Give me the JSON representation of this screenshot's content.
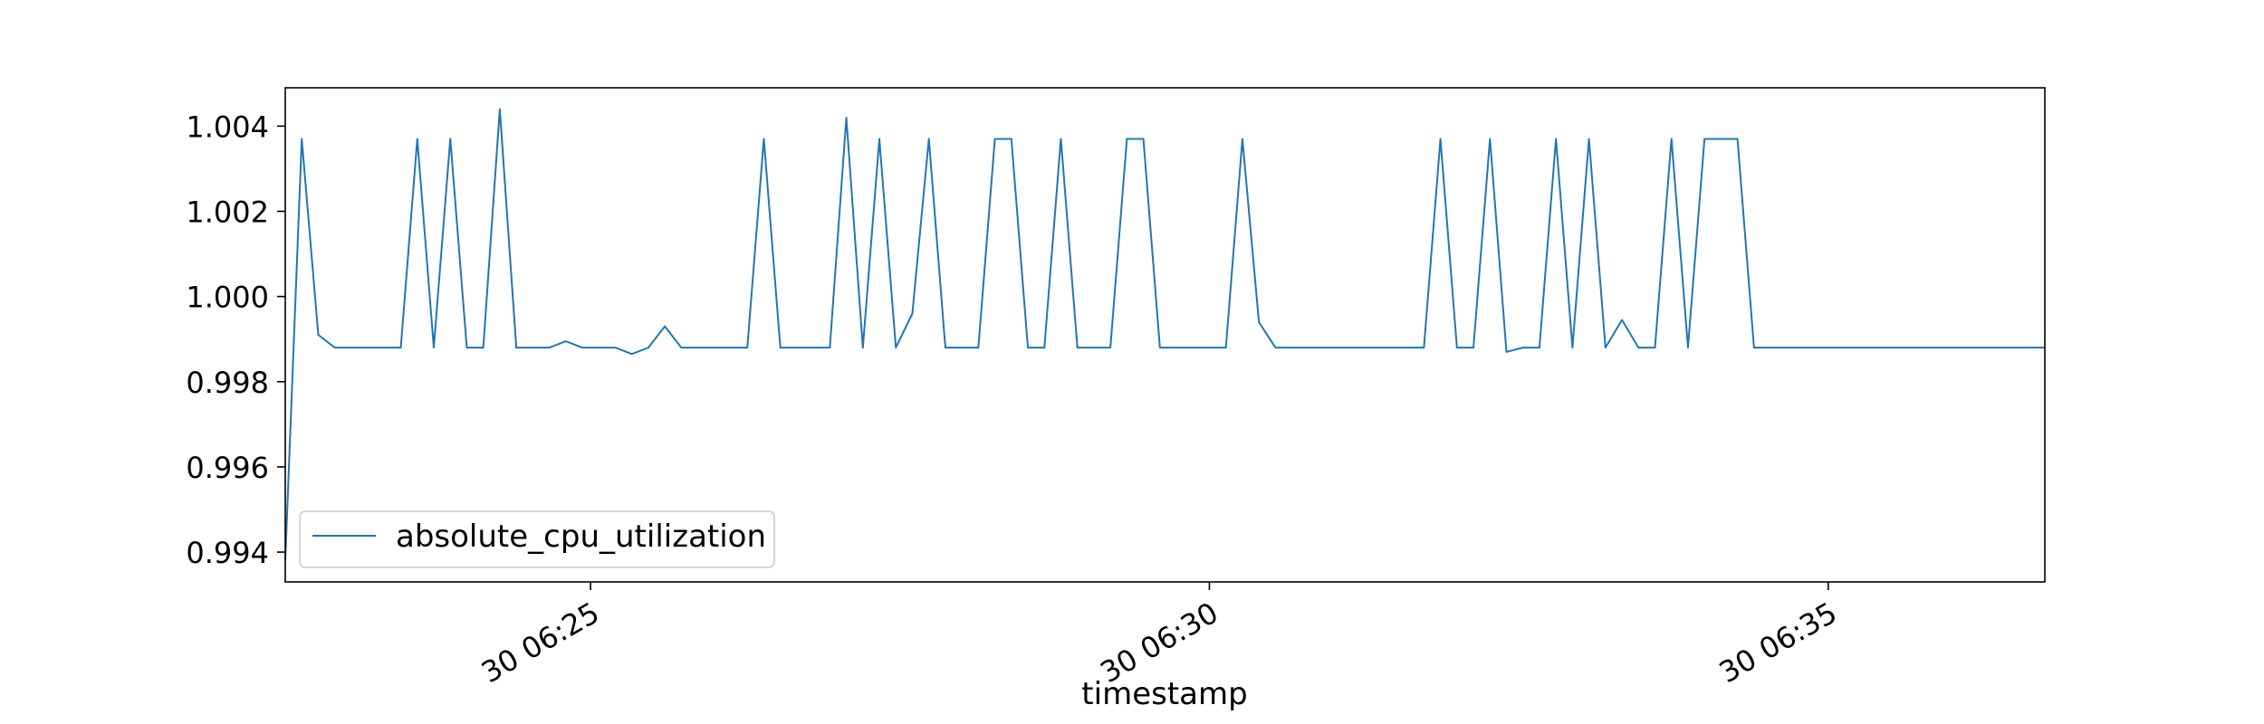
{
  "chart_data": {
    "type": "line",
    "title": "",
    "xlabel": "timestamp",
    "ylabel": "",
    "x_unit": "minutes",
    "xlim": [
      "30 06:22:32",
      "30 06:36:45"
    ],
    "ylim": [
      0.9933,
      1.0049
    ],
    "x_ticks": [
      {
        "label": "30 06:25",
        "value": "30 06:25:00"
      },
      {
        "label": "30 06:30",
        "value": "30 06:30:00"
      },
      {
        "label": "30 06:35",
        "value": "30 06:35:00"
      }
    ],
    "y_ticks": [
      "0.994",
      "0.996",
      "0.998",
      "1.000",
      "1.002",
      "1.004"
    ],
    "grid": false,
    "legend_position": "lower-left",
    "series_color": "#1f77b4",
    "series": [
      {
        "name": "absolute_cpu_utilization",
        "x": [
          "30 06:22:32",
          "30 06:22:40",
          "30 06:22:48",
          "30 06:22:56",
          "30 06:23:04",
          "30 06:23:12",
          "30 06:23:20",
          "30 06:23:28",
          "30 06:23:36",
          "30 06:23:44",
          "30 06:23:52",
          "30 06:24:00",
          "30 06:24:08",
          "30 06:24:16",
          "30 06:24:24",
          "30 06:24:32",
          "30 06:24:40",
          "30 06:24:48",
          "30 06:24:56",
          "30 06:25:04",
          "30 06:25:12",
          "30 06:25:20",
          "30 06:25:28",
          "30 06:25:36",
          "30 06:25:44",
          "30 06:25:52",
          "30 06:26:00",
          "30 06:26:08",
          "30 06:26:16",
          "30 06:26:24",
          "30 06:26:32",
          "30 06:26:40",
          "30 06:26:48",
          "30 06:26:56",
          "30 06:27:04",
          "30 06:27:12",
          "30 06:27:20",
          "30 06:27:28",
          "30 06:27:36",
          "30 06:27:44",
          "30 06:27:52",
          "30 06:28:00",
          "30 06:28:08",
          "30 06:28:16",
          "30 06:28:24",
          "30 06:28:32",
          "30 06:28:40",
          "30 06:28:48",
          "30 06:28:56",
          "30 06:29:04",
          "30 06:29:12",
          "30 06:29:20",
          "30 06:29:28",
          "30 06:29:36",
          "30 06:29:44",
          "30 06:29:52",
          "30 06:30:00",
          "30 06:30:08",
          "30 06:30:16",
          "30 06:30:24",
          "30 06:30:32",
          "30 06:30:40",
          "30 06:30:48",
          "30 06:30:56",
          "30 06:31:04",
          "30 06:31:12",
          "30 06:31:20",
          "30 06:31:28",
          "30 06:31:36",
          "30 06:31:44",
          "30 06:31:52",
          "30 06:32:00",
          "30 06:32:08",
          "30 06:32:16",
          "30 06:32:24",
          "30 06:32:32",
          "30 06:32:40",
          "30 06:32:48",
          "30 06:32:56",
          "30 06:33:04",
          "30 06:33:12",
          "30 06:33:20",
          "30 06:33:28",
          "30 06:33:36",
          "30 06:33:44",
          "30 06:33:52",
          "30 06:34:00",
          "30 06:34:08",
          "30 06:34:16",
          "30 06:34:24",
          "30 06:34:32",
          "30 06:34:40",
          "30 06:34:48",
          "30 06:34:56",
          "30 06:35:04",
          "30 06:35:12",
          "30 06:35:20",
          "30 06:35:28",
          "30 06:35:36",
          "30 06:35:44",
          "30 06:35:52",
          "30 06:36:00",
          "30 06:36:08",
          "30 06:36:16",
          "30 06:36:24",
          "30 06:36:32",
          "30 06:36:40",
          "30 06:36:45"
        ],
        "values": [
          0.9938,
          1.0037,
          0.9991,
          0.9988,
          0.9988,
          0.9988,
          0.9988,
          0.9988,
          1.0037,
          0.9988,
          1.0037,
          0.9988,
          0.9988,
          1.0044,
          0.9988,
          0.9988,
          0.9988,
          0.99895,
          0.9988,
          0.9988,
          0.9988,
          0.99865,
          0.9988,
          0.9993,
          0.9988,
          0.9988,
          0.9988,
          0.9988,
          0.9988,
          1.0037,
          0.9988,
          0.9988,
          0.9988,
          0.9988,
          1.0042,
          0.9988,
          1.0037,
          0.9988,
          0.9996,
          1.0037,
          0.9988,
          0.9988,
          0.9988,
          1.0037,
          1.0037,
          0.9988,
          0.9988,
          1.0037,
          0.9988,
          0.9988,
          0.9988,
          1.0037,
          1.0037,
          0.9988,
          0.9988,
          0.9988,
          0.9988,
          0.9988,
          1.0037,
          0.9994,
          0.9988,
          0.9988,
          0.9988,
          0.9988,
          0.9988,
          0.9988,
          0.9988,
          0.9988,
          0.9988,
          0.9988,
          1.0037,
          0.9988,
          0.9988,
          1.0037,
          0.9987,
          0.9988,
          0.9988,
          1.0037,
          0.9988,
          1.0037,
          0.9988,
          0.99945,
          0.9988,
          0.9988,
          1.0037,
          0.9988,
          1.0037,
          1.0037,
          1.0037,
          0.9988,
          0.9988,
          0.9988,
          0.9988,
          0.9988,
          0.9988,
          0.9988,
          0.9988,
          0.9988,
          0.9988,
          0.9988,
          0.9988,
          0.9988,
          0.9988,
          0.9988,
          0.9988,
          0.9988,
          0.9988,
          0.9988
        ]
      }
    ]
  }
}
